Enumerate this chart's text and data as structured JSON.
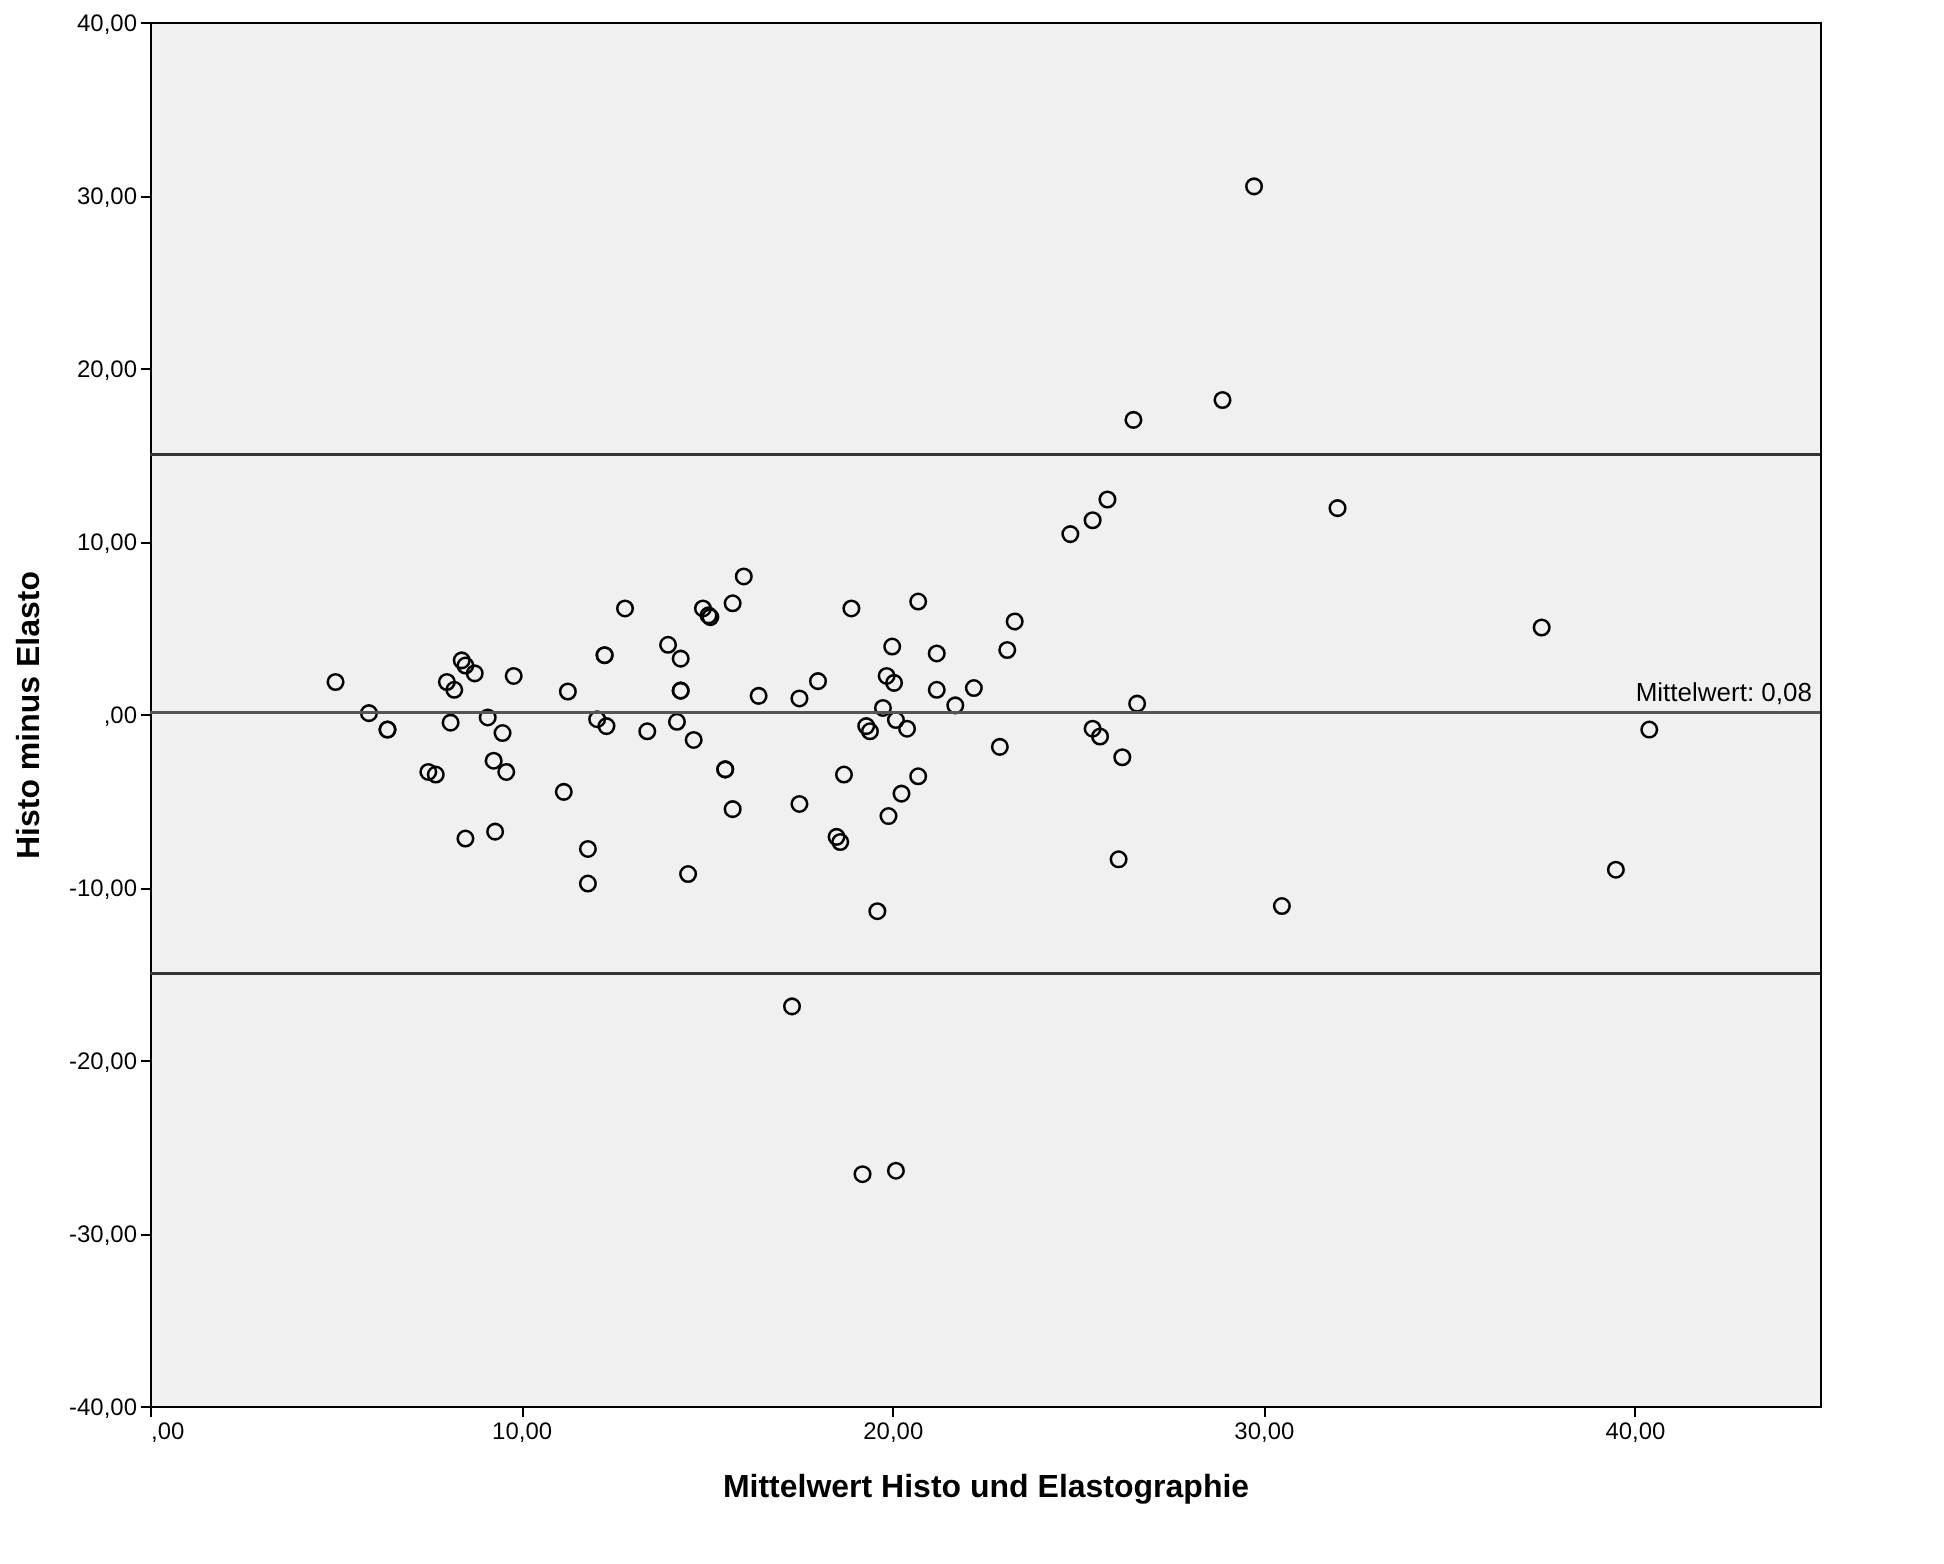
{
  "chart_data": {
    "type": "scatter",
    "xlabel": "Mittelwert Histo und Elastographie",
    "ylabel": "Histo minus Elasto",
    "x": [
      5.0,
      5.9,
      6.4,
      6.4,
      8.1,
      8.0,
      8.2,
      8.4,
      8.5,
      8.75,
      9.1,
      9.5,
      9.8,
      7.5,
      7.7,
      9.26,
      9.6,
      8.5,
      9.3,
      11.26,
      11.15,
      11.8,
      11.8,
      12.8,
      12.05,
      12.3,
      12.25,
      12.25,
      13.4,
      13.96,
      14.3,
      14.3,
      14.3,
      14.2,
      14.65,
      14.5,
      14.9,
      15.05,
      15.1,
      15.7,
      16.0,
      15.5,
      15.5,
      15.7,
      16.4,
      17.5,
      18.0,
      18.9,
      20.7,
      20.0,
      21.2,
      23.3,
      23.1,
      19.85,
      20.05,
      21.2,
      22.2,
      21.7,
      19.75,
      20.1,
      20.4,
      19.3,
      19.4,
      22.9,
      18.7,
      17.5,
      20.7,
      20.25,
      19.9,
      18.5,
      18.6,
      19.6,
      25.4,
      25.6,
      26.6,
      26.2,
      26.1,
      29.75,
      28.9,
      26.5,
      25.8,
      25.4,
      24.8,
      32.0,
      37.5,
      39.5,
      30.5,
      40.4,
      17.3,
      19.2,
      20.1
    ],
    "values": [
      1.85,
      0.05,
      -0.9,
      -0.9,
      -0.5,
      1.85,
      1.4,
      3.1,
      2.8,
      2.35,
      -0.2,
      -1.1,
      2.2,
      -3.35,
      -3.5,
      -2.7,
      -3.35,
      -7.2,
      -6.8,
      1.3,
      -4.5,
      -7.8,
      -9.8,
      6.1,
      -0.3,
      -0.7,
      3.4,
      3.4,
      -1.0,
      4.0,
      3.2,
      1.35,
      1.35,
      -0.45,
      -1.5,
      -9.25,
      6.1,
      5.7,
      5.6,
      6.4,
      7.95,
      -3.2,
      -3.2,
      -5.5,
      1.05,
      0.9,
      1.9,
      6.1,
      6.5,
      3.9,
      3.5,
      5.35,
      3.7,
      2.2,
      1.8,
      1.4,
      1.5,
      0.5,
      0.35,
      -0.35,
      -0.85,
      -0.7,
      -1.0,
      -1.9,
      -3.5,
      -5.2,
      -3.6,
      -4.6,
      -5.9,
      -7.1,
      -7.4,
      -11.4,
      -0.85,
      -1.3,
      0.6,
      -2.5,
      -8.4,
      30.5,
      18.15,
      17.0,
      12.4,
      11.2,
      10.4,
      11.9,
      5.0,
      -9.0,
      -11.1,
      -0.9,
      -16.9,
      -26.6,
      -26.4
    ],
    "color": "#000000",
    "marker": "circle",
    "xlim": [
      0,
      45
    ],
    "ylim": [
      -40,
      40
    ],
    "xticks": [
      {
        "value": 0,
        "label": ",00"
      },
      {
        "value": 10,
        "label": "10,00"
      },
      {
        "value": 20,
        "label": "20,00"
      },
      {
        "value": 30,
        "label": "30,00"
      },
      {
        "value": 40,
        "label": "40,00"
      }
    ],
    "yticks": [
      {
        "value": -40,
        "label": "-40,00"
      },
      {
        "value": -30,
        "label": "-30,00"
      },
      {
        "value": -20,
        "label": "-20,00"
      },
      {
        "value": -10,
        "label": "-10,00"
      },
      {
        "value": 0,
        "label": ",00"
      },
      {
        "value": 10,
        "label": "10,00"
      },
      {
        "value": 20,
        "label": "20,00"
      },
      {
        "value": 30,
        "label": "30,00"
      },
      {
        "value": 40,
        "label": "40,00"
      }
    ],
    "ref_lines": [
      {
        "axis": "y",
        "value": 15.0,
        "color": "#333333"
      },
      {
        "axis": "y",
        "value": 0.08,
        "label": "Mittelwert: 0,08",
        "color": "#555555"
      },
      {
        "axis": "y",
        "value": -15.0,
        "color": "#333333"
      }
    ],
    "grid": false
  }
}
